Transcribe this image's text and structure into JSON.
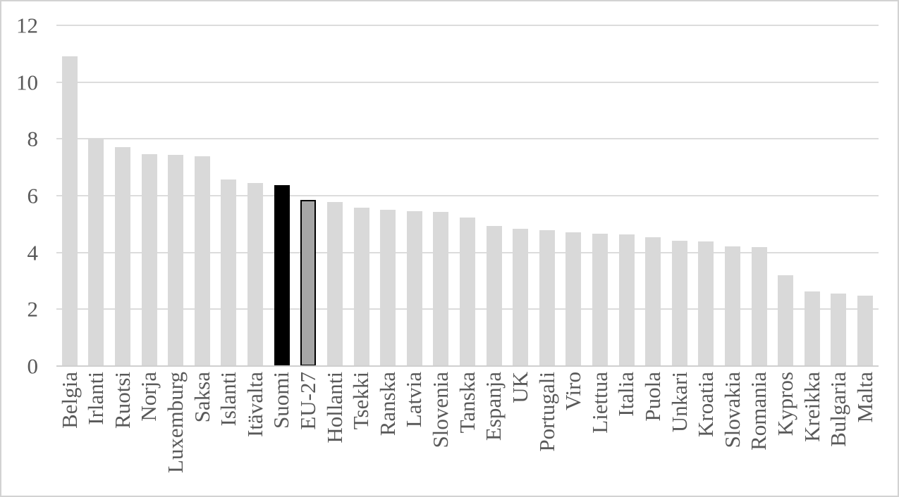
{
  "figure": {
    "background": "#ffffff",
    "border_color": "#d2d2d2"
  },
  "chart_data": {
    "type": "bar",
    "title": "",
    "xlabel": "",
    "ylabel": "",
    "legend": "none",
    "grid": true,
    "gridline_color": "#dcdcdc",
    "axis_line_color": "#cfcfcf",
    "tick_label_color": "#595959",
    "default_bar_color": "#d9d9d9",
    "ylim": [
      0,
      12
    ],
    "yticks": [
      0,
      2,
      4,
      6,
      8,
      10,
      12
    ],
    "categories": [
      "Belgia",
      "Irlanti",
      "Ruotsi",
      "Norja",
      "Luxemburg",
      "Saksa",
      "Islanti",
      "Itävalta",
      "Suomi",
      "EU-27",
      "Hollanti",
      "Tsekki",
      "Ranska",
      "Latvia",
      "Slovenia",
      "Tanska",
      "Espanja",
      "UK",
      "Portugali",
      "Viro",
      "Liettua",
      "Italia",
      "Puola",
      "Unkari",
      "Kroatia",
      "Slovakia",
      "Romania",
      "Kypros",
      "Kreikka",
      "Bulgaria",
      "Malta"
    ],
    "values": [
      10.92,
      8.0,
      7.7,
      7.46,
      7.45,
      7.4,
      6.57,
      6.45,
      6.37,
      5.85,
      5.78,
      5.58,
      5.51,
      5.46,
      5.43,
      5.22,
      4.93,
      4.84,
      4.78,
      4.71,
      4.67,
      4.63,
      4.53,
      4.41,
      4.39,
      4.22,
      4.19,
      3.19,
      2.62,
      2.55,
      2.47
    ],
    "highlighted_bars": [
      {
        "category": "Suomi",
        "fill": "#000000"
      },
      {
        "category": "EU-27",
        "fill": "#a6a6a6",
        "border": "#000000"
      }
    ]
  }
}
